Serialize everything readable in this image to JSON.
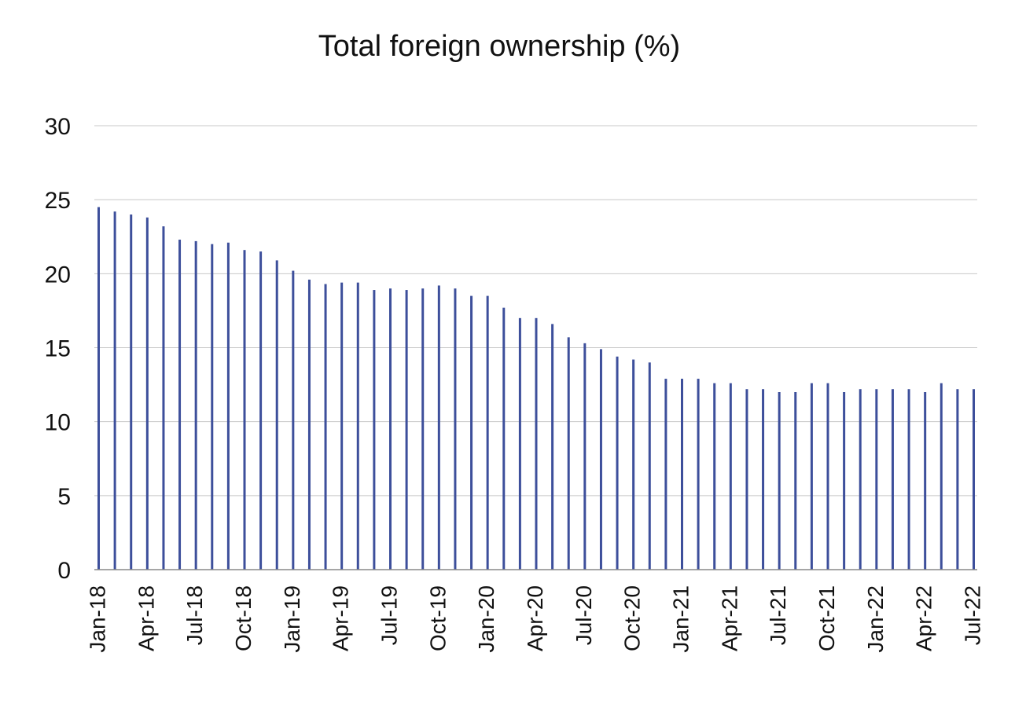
{
  "chart_data": {
    "type": "bar",
    "title": "Total foreign ownership (%)",
    "xlabel": "",
    "ylabel": "",
    "ylim": [
      0,
      30
    ],
    "yticks": [
      0,
      5,
      10,
      15,
      20,
      25,
      30
    ],
    "grid": true,
    "bar_color": "#3d4f9b",
    "categories": [
      "Jan-18",
      "Feb-18",
      "Mar-18",
      "Apr-18",
      "May-18",
      "Jun-18",
      "Jul-18",
      "Aug-18",
      "Sep-18",
      "Oct-18",
      "Nov-18",
      "Dec-18",
      "Jan-19",
      "Feb-19",
      "Mar-19",
      "Apr-19",
      "May-19",
      "Jun-19",
      "Jul-19",
      "Aug-19",
      "Sep-19",
      "Oct-19",
      "Nov-19",
      "Dec-19",
      "Jan-20",
      "Feb-20",
      "Mar-20",
      "Apr-20",
      "May-20",
      "Jun-20",
      "Jul-20",
      "Aug-20",
      "Sep-20",
      "Oct-20",
      "Nov-20",
      "Dec-20",
      "Jan-21",
      "Feb-21",
      "Mar-21",
      "Apr-21",
      "May-21",
      "Jun-21",
      "Jul-21",
      "Aug-21",
      "Sep-21",
      "Oct-21",
      "Nov-21",
      "Dec-21",
      "Jan-22",
      "Feb-22",
      "Mar-22",
      "Apr-22",
      "May-22",
      "Jun-22",
      "Jul-22"
    ],
    "tick_labels": [
      "Jan-18",
      "Apr-18",
      "Jul-18",
      "Oct-18",
      "Jan-19",
      "Apr-19",
      "Jul-19",
      "Oct-19",
      "Jan-20",
      "Apr-20",
      "Jul-20",
      "Oct-20",
      "Jan-21",
      "Apr-21",
      "Jul-21",
      "Oct-21",
      "Jan-22",
      "Apr-22",
      "Jul-22"
    ],
    "values": [
      24.5,
      24.2,
      24.0,
      23.8,
      23.2,
      22.3,
      22.2,
      22.0,
      22.1,
      21.6,
      21.5,
      20.9,
      20.2,
      19.6,
      19.3,
      19.4,
      19.4,
      18.9,
      19.0,
      18.9,
      19.0,
      19.2,
      19.0,
      18.5,
      18.5,
      17.7,
      17.0,
      17.0,
      16.6,
      15.7,
      15.3,
      14.9,
      14.4,
      14.2,
      14.0,
      12.9,
      12.9,
      12.9,
      12.6,
      12.6,
      12.2,
      12.2,
      12.0,
      12.0,
      12.6,
      12.6,
      12.0,
      12.2,
      12.2,
      12.2,
      12.2,
      12.0,
      12.6,
      12.2,
      12.2
    ]
  }
}
